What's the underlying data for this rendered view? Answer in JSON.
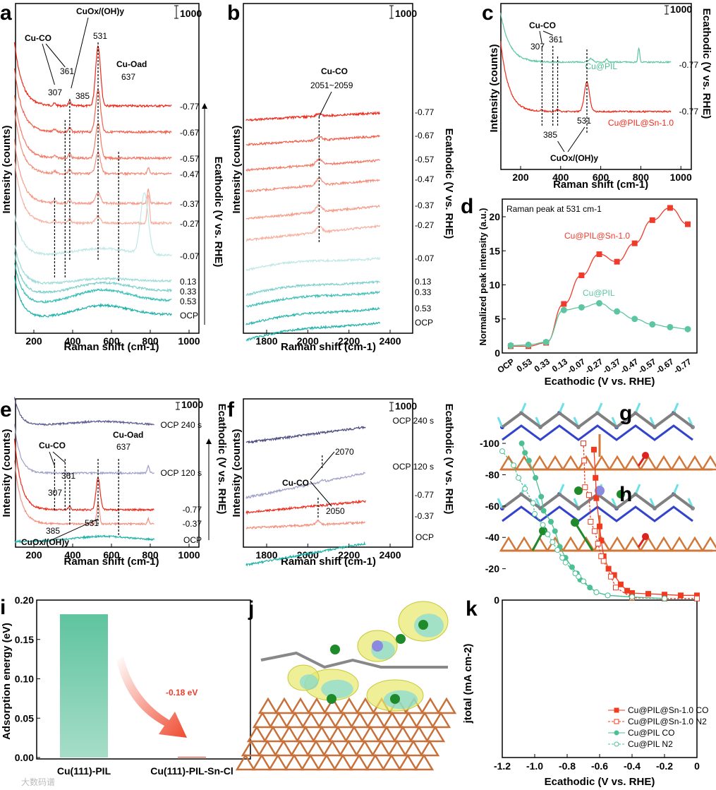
{
  "panel_labels": [
    "a",
    "b",
    "c",
    "d",
    "e",
    "f",
    "g",
    "h",
    "i",
    "j",
    "k"
  ],
  "common": {
    "raman_xlabel": "Raman shift (cm-1)",
    "intensity_label": "Intensity (counts)",
    "ecath_label": "Ecathodic (V vs. RHE)",
    "scale_bar": "1000"
  },
  "chart_data": [
    {
      "panel": "a",
      "type": "line",
      "xlabel": "Raman shift (cm-1)",
      "ylabel": "Intensity (counts)",
      "xlim": [
        100,
        950
      ],
      "xticks": [
        200,
        400,
        600,
        800,
        1000
      ],
      "traces": [
        "-0.77",
        "-0.67",
        "-0.57",
        "-0.47",
        "-0.37",
        "-0.27",
        "-0.07",
        "0.13",
        "0.33",
        "0.53",
        "OCP"
      ],
      "annotations": [
        "Cu-CO",
        "307",
        "361",
        "385",
        "CuOx/(OH)y",
        "531",
        "Cu-Oad",
        "637"
      ],
      "side_label": "Ecathodic (V vs. RHE)"
    },
    {
      "panel": "b",
      "type": "line",
      "xlabel": "Raman shift (cm-1)",
      "ylabel": "Intensity (counts)",
      "xlim": [
        1700,
        2420
      ],
      "xticks": [
        1800,
        2000,
        2200,
        2400
      ],
      "traces": [
        "-0.77",
        "-0.67",
        "-0.57",
        "-0.47",
        "-0.37",
        "-0.27",
        "-0.07",
        "0.13",
        "0.33",
        "0.53",
        "OCP"
      ],
      "annotations": [
        "Cu-CO",
        "2051~2059"
      ]
    },
    {
      "panel": "c",
      "type": "line",
      "xlabel": "Raman shift (cm-1)",
      "ylabel": "Intensity (counts)",
      "xlim": [
        100,
        1000
      ],
      "xticks": [
        200,
        400,
        600,
        800,
        1000
      ],
      "traces": [
        {
          "name": "Cu@PIL",
          "potential": "-0.77"
        },
        {
          "name": "Cu@PIL@Sn-1.0",
          "potential": "-0.77"
        }
      ],
      "annotations": [
        "Cu-CO",
        "307",
        "361",
        "385",
        "531",
        "CuOx/(OH)y"
      ]
    },
    {
      "panel": "d",
      "type": "line",
      "title": "Raman peak at 531 cm-1",
      "xlabel": "Ecathodic (V vs. RHE)",
      "ylabel": "Normalized peak intensity (a.u.)",
      "ylim": [
        0,
        22
      ],
      "yticks": [
        0,
        5,
        10,
        15,
        20
      ],
      "categories": [
        "OCP",
        "0.53",
        "0.33",
        "0.13",
        "-0.07",
        "-0.27",
        "-0.37",
        "-0.47",
        "-0.57",
        "-0.67",
        "-0.77"
      ],
      "series": [
        {
          "name": "Cu@PIL@Sn-1.0",
          "color": "#ef3b2c",
          "values": [
            1.0,
            1.0,
            1.5,
            7.2,
            11.4,
            14.5,
            13.4,
            16.1,
            19.5,
            21.3,
            18.9
          ]
        },
        {
          "name": "Cu@PIL",
          "color": "#5cc6a0",
          "values": [
            1.1,
            1.2,
            1.6,
            6.3,
            6.7,
            7.3,
            6.1,
            5.0,
            4.2,
            3.8,
            3.5
          ]
        }
      ]
    },
    {
      "panel": "e",
      "type": "line",
      "xlabel": "Raman shift (cm-1)",
      "ylabel": "Intensity (counts)",
      "xlim": [
        100,
        950
      ],
      "xticks": [
        200,
        400,
        600,
        800,
        1000
      ],
      "traces": [
        "OCP 240 s",
        "OCP 120 s",
        "-0.77",
        "-0.37",
        "OCP"
      ],
      "annotations": [
        "Cu-CO",
        "307",
        "361",
        "Cu-Oad",
        "637",
        "385",
        "531",
        "CuOx/(OH)y"
      ]
    },
    {
      "panel": "f",
      "type": "line",
      "xlabel": "Raman shift (cm-1)",
      "ylabel": "Intensity (counts)",
      "xlim": [
        1700,
        2420
      ],
      "xticks": [
        1800,
        2000,
        2200,
        2400
      ],
      "traces": [
        "OCP 240 s",
        "OCP 120 s",
        "-0.77",
        "-0.37",
        "OCP"
      ],
      "annotations": [
        "Cu-CO",
        "2070",
        "2050"
      ]
    },
    {
      "panel": "i",
      "type": "bar",
      "ylabel": "Adsorption energy (eV)",
      "ylim": [
        0,
        0.2
      ],
      "yticks": [
        "0.00",
        "0.05",
        "0.10",
        "0.15",
        "0.20"
      ],
      "categories": [
        "Cu(111)-PIL",
        "Cu(111)-PIL-Sn-Cl"
      ],
      "values": [
        0.182,
        0.001
      ],
      "annotation": "-0.18 eV"
    },
    {
      "panel": "k",
      "type": "line",
      "xlabel": "Ecathodic (V vs. RHE)",
      "ylabel": "jtotal (mA cm-2)",
      "xlim": [
        -1.2,
        0
      ],
      "ylim": [
        -100,
        0
      ],
      "xticks": [
        "-1.2",
        "-1.0",
        "-0.8",
        "-0.6",
        "-0.4",
        "-0.2",
        "0"
      ],
      "yticks": [
        "0",
        "-20",
        "-40",
        "-60",
        "-80",
        "-100"
      ],
      "legend": "bottom-right",
      "series": [
        {
          "name": "Cu@PIL@Sn-1.0 CO",
          "color": "#f03b20",
          "style": "solid-filled-square",
          "x": [
            0,
            -0.1,
            -0.2,
            -0.3,
            -0.4,
            -0.43,
            -0.47,
            -0.51,
            -0.545,
            -0.575,
            -0.59,
            -0.6,
            -0.62,
            -0.625,
            -0.635
          ],
          "y": [
            -3,
            -3,
            -3.5,
            -4,
            -4.5,
            -6,
            -10,
            -16,
            -20,
            -28,
            -38,
            -47,
            -65,
            -78,
            -96
          ]
        },
        {
          "name": "Cu@PIL@Sn-1.0 N2",
          "color": "#f03b20",
          "style": "dashed-open-square",
          "x": [
            0,
            -0.2,
            -0.4,
            -0.5,
            -0.53,
            -0.575,
            -0.59,
            -0.61,
            -0.63,
            -0.655,
            -0.665,
            -0.69,
            -0.695,
            -0.7
          ],
          "y": [
            -1,
            -1,
            -1.5,
            -8,
            -15,
            -25,
            -28,
            -36,
            -44,
            -50,
            -67,
            -72,
            -89,
            -100
          ]
        },
        {
          "name": "Cu@PIL CO",
          "color": "#4cbf94",
          "style": "solid-filled-circle",
          "x": [
            -0.2,
            -0.4,
            -0.55,
            -0.62,
            -0.66,
            -0.72,
            -0.74,
            -0.77,
            -0.81,
            -0.845,
            -0.875,
            -0.9,
            -0.945,
            -0.96,
            -0.995,
            -1.035,
            -1.06,
            -1.08
          ],
          "y": [
            -1,
            -2,
            -3,
            -5,
            -8,
            -13,
            -17,
            -21,
            -27,
            -34,
            -44,
            -50,
            -57,
            -66,
            -78,
            -89,
            -94,
            -100
          ]
        },
        {
          "name": "Cu@PIL N2",
          "color": "#4cbf94",
          "style": "dashed-open-circle",
          "x": [
            -0.2,
            -0.4,
            -0.55,
            -0.62,
            -0.7,
            -0.73,
            -0.75,
            -0.81,
            -0.83,
            -0.86,
            -0.89,
            -0.92,
            -0.95,
            -1.0,
            -1.01,
            -1.06,
            -1.1,
            -1.13,
            -1.2
          ],
          "y": [
            -1,
            -2,
            -3,
            -5,
            -12,
            -15,
            -17,
            -24,
            -27,
            -32,
            -37,
            -42,
            -48,
            -55,
            -62,
            -71,
            -78,
            -86,
            -95
          ]
        }
      ]
    }
  ],
  "watermark": "大数码谱"
}
